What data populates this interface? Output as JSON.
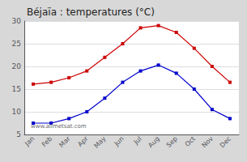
{
  "chart_data": {
    "type": "line",
    "title": "Béjaïa : temperatures (°C)",
    "categories": [
      "Jan",
      "Feb",
      "Mar",
      "Apr",
      "May",
      "Jun",
      "Jul",
      "Aug",
      "Sep",
      "Oct",
      "Nov",
      "Dec"
    ],
    "series": [
      {
        "color": "#cc0000",
        "values": [
          16.1,
          16.5,
          17.5,
          19.0,
          22.0,
          25.0,
          28.5,
          29.0,
          27.5,
          24.0,
          20.0,
          16.5
        ]
      },
      {
        "color": "#0000cc",
        "values": [
          7.5,
          7.5,
          8.5,
          10.0,
          13.0,
          16.5,
          19.0,
          20.3,
          18.5,
          15.0,
          10.5,
          8.5
        ]
      }
    ],
    "ylim": [
      5,
      30
    ],
    "yticks": [
      5,
      10,
      15,
      20,
      25,
      30
    ],
    "grid": true,
    "marker": "square",
    "annotation": "www.allmetsat.com"
  }
}
